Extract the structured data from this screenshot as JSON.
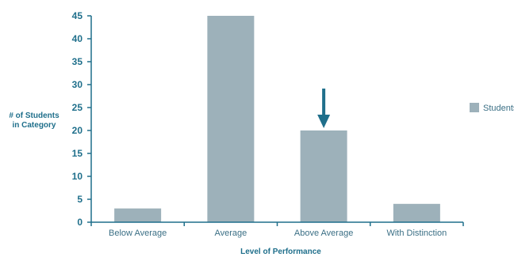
{
  "chart_data": {
    "type": "bar",
    "categories": [
      "Below Average",
      "Average",
      "Above Average",
      "With Distinction"
    ],
    "series": [
      {
        "name": "Students",
        "values": [
          3,
          45,
          20,
          4
        ]
      }
    ],
    "title": "",
    "xlabel": "Level of Performance",
    "ylabel_lines": [
      "# of Students",
      "in Category"
    ],
    "ylim": [
      0,
      45
    ],
    "yticks": [
      0,
      5,
      10,
      15,
      20,
      25,
      30,
      35,
      40,
      45
    ],
    "grid": false,
    "legend_position": "right",
    "highlight_category": "Above Average",
    "colors": {
      "bar": "#9db1ba",
      "axis": "#1f6f8b",
      "text": "#1f6f8b",
      "category_text": "#3b6f85",
      "arrow": "#1f6f8b"
    }
  }
}
